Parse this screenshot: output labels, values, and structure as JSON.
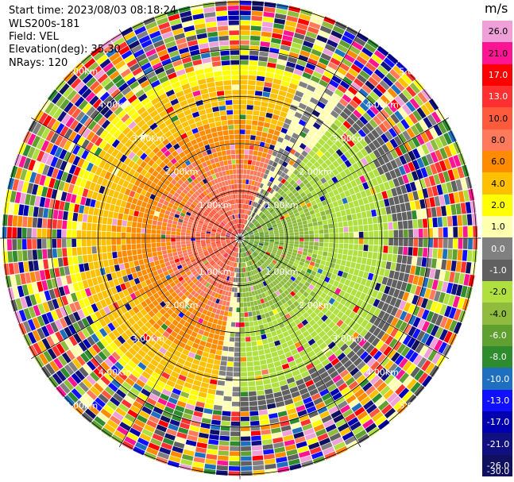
{
  "header": {
    "start_time": "Start time: 2023/08/03 08:18:24",
    "instrument": "WLS200s-181",
    "field": "Field: VEL",
    "elevation": "Elevation(deg): 35.30",
    "nrays": "NRays: 120"
  },
  "colorbar": {
    "unit": "m/s",
    "ticks": [
      "26.0",
      "21.0",
      "17.0",
      "13.0",
      "10.0",
      "8.0",
      "6.0",
      "4.0",
      "2.0",
      "1.0",
      "0.0",
      "-1.0",
      "-2.0",
      "-4.0",
      "-6.0",
      "-8.0",
      "-10.0",
      "-13.0",
      "-17.0",
      "-21.0",
      "-26.0",
      "-30.0"
    ],
    "colors": [
      "#f0a0d8",
      "#ff1493",
      "#ff0000",
      "#ff3030",
      "#ff5a3c",
      "#ff7a5a",
      "#ff8c00",
      "#ffc000",
      "#ffff00",
      "#ffffb0",
      "#808080",
      "#606060",
      "#b0e040",
      "#8fbc3f",
      "#60a030",
      "#2e8b2e",
      "#1e6fc0",
      "#1010ff",
      "#0000b0",
      "#101080",
      "#101060"
    ]
  },
  "chart_data": {
    "type": "ppi",
    "nrays": 120,
    "range_rings_km": [
      1.0,
      2.0,
      3.0,
      4.0,
      5.0
    ],
    "range_ring_labels": [
      "1.00km",
      "2.00km",
      "3.00km",
      "4.00km",
      "5.00km"
    ],
    "max_range_km": 5.1,
    "field": "VEL",
    "units": "m/s",
    "approx_velocity_pattern": {
      "positive_sector_deg": [
        190,
        20
      ],
      "negative_sector_deg": [
        40,
        180
      ],
      "core_range_km": 3.6,
      "peak_positive": 10.0,
      "peak_negative": -6.0
    }
  }
}
